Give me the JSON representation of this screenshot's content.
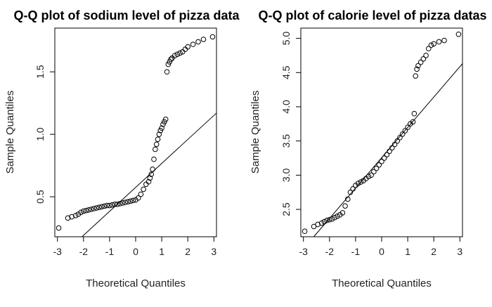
{
  "chart_data": [
    {
      "type": "scatter",
      "title": "Q-Q plot of sodium level of pizza data",
      "xlabel": "Theoretical Quantiles",
      "ylabel": "Sample Quantiles",
      "xlim": [
        -3.1,
        3.1
      ],
      "ylim": [
        0.18,
        1.85
      ],
      "xticks": [
        -3,
        -2,
        -1,
        0,
        1,
        2,
        3
      ],
      "yticks": [
        0.5,
        1.0,
        1.5
      ],
      "ytick_labels": [
        "0.5",
        "1.0",
        "1.5"
      ],
      "reference_line": {
        "x": [
          -3.1,
          3.1
        ],
        "y": [
          -0.02,
          1.17
        ]
      },
      "series": [
        {
          "marker": "open-circle",
          "x": [
            -2.95,
            -2.6,
            -2.45,
            -2.3,
            -2.2,
            -2.1,
            -2.0,
            -1.9,
            -1.8,
            -1.7,
            -1.6,
            -1.5,
            -1.4,
            -1.3,
            -1.2,
            -1.1,
            -1.0,
            -0.9,
            -0.8,
            -0.7,
            -0.6,
            -0.5,
            -0.4,
            -0.3,
            -0.2,
            -0.1,
            0.0,
            0.1,
            0.2,
            0.3,
            0.4,
            0.5,
            0.55,
            0.6,
            0.65,
            0.7,
            0.75,
            0.8,
            0.85,
            0.9,
            0.95,
            1.0,
            1.05,
            1.1,
            1.15,
            1.2,
            1.25,
            1.3,
            1.35,
            1.4,
            1.5,
            1.6,
            1.7,
            1.8,
            1.9,
            2.0,
            2.2,
            2.4,
            2.6,
            2.95
          ],
          "y": [
            0.25,
            0.33,
            0.34,
            0.35,
            0.36,
            0.375,
            0.385,
            0.39,
            0.395,
            0.4,
            0.405,
            0.41,
            0.415,
            0.42,
            0.425,
            0.43,
            0.43,
            0.435,
            0.44,
            0.44,
            0.445,
            0.45,
            0.455,
            0.46,
            0.465,
            0.47,
            0.475,
            0.49,
            0.52,
            0.56,
            0.6,
            0.62,
            0.65,
            0.68,
            0.72,
            0.8,
            0.88,
            0.92,
            0.96,
            1.0,
            1.03,
            1.05,
            1.08,
            1.1,
            1.12,
            1.5,
            1.56,
            1.58,
            1.6,
            1.61,
            1.63,
            1.64,
            1.65,
            1.66,
            1.68,
            1.7,
            1.72,
            1.74,
            1.76,
            1.78
          ]
        }
      ]
    },
    {
      "type": "scatter",
      "title": "Q-Q plot of calorie level of pizza datas",
      "xlabel": "Theoretical Quantiles",
      "ylabel": "Sample Quantiles",
      "xlim": [
        -3.1,
        3.1
      ],
      "ylim": [
        2.1,
        5.15
      ],
      "xticks": [
        -3,
        -2,
        -1,
        0,
        1,
        2,
        3
      ],
      "yticks": [
        2.5,
        3.0,
        3.5,
        4.0,
        4.5,
        5.0
      ],
      "ytick_labels": [
        "2.5",
        "3.0",
        "3.5",
        "4.0",
        "4.5",
        "5.0"
      ],
      "reference_line": {
        "x": [
          -3.1,
          3.1
        ],
        "y": [
          1.88,
          4.63
        ]
      },
      "series": [
        {
          "marker": "open-circle",
          "x": [
            -2.95,
            -2.6,
            -2.45,
            -2.3,
            -2.2,
            -2.1,
            -2.0,
            -1.9,
            -1.8,
            -1.7,
            -1.6,
            -1.5,
            -1.4,
            -1.3,
            -1.2,
            -1.1,
            -1.0,
            -0.9,
            -0.8,
            -0.7,
            -0.6,
            -0.5,
            -0.4,
            -0.3,
            -0.2,
            -0.1,
            0.0,
            0.1,
            0.2,
            0.3,
            0.4,
            0.5,
            0.6,
            0.7,
            0.8,
            0.9,
            1.0,
            1.1,
            1.2,
            1.25,
            1.3,
            1.35,
            1.4,
            1.5,
            1.6,
            1.7,
            1.8,
            1.9,
            2.0,
            2.2,
            2.4,
            2.95
          ],
          "y": [
            2.18,
            2.25,
            2.28,
            2.3,
            2.32,
            2.34,
            2.35,
            2.36,
            2.38,
            2.4,
            2.42,
            2.45,
            2.55,
            2.65,
            2.75,
            2.8,
            2.85,
            2.88,
            2.9,
            2.92,
            2.95,
            2.98,
            3.0,
            3.05,
            3.1,
            3.15,
            3.2,
            3.25,
            3.3,
            3.35,
            3.4,
            3.45,
            3.5,
            3.55,
            3.6,
            3.65,
            3.7,
            3.75,
            3.78,
            3.9,
            4.45,
            4.55,
            4.6,
            4.65,
            4.7,
            4.75,
            4.85,
            4.9,
            4.92,
            4.95,
            4.97,
            5.06
          ]
        }
      ]
    }
  ]
}
